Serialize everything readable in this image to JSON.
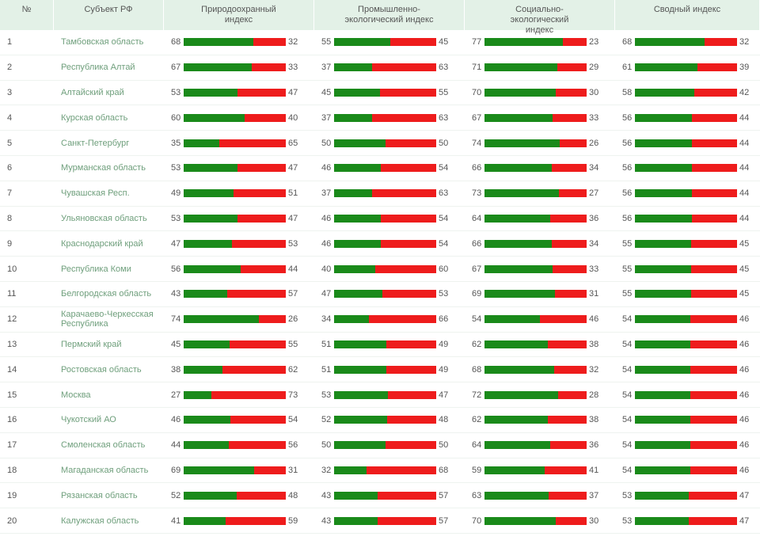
{
  "table": {
    "header": [
      "№",
      "Субъект РФ",
      "Природоохранный индекс",
      "Промышленно-экологический индекс",
      "Социально-экологический индекс",
      "Сводный индекс"
    ],
    "rows": [
      [
        1,
        "Тамбовская область",
        [
          68,
          32
        ],
        [
          55,
          45
        ],
        [
          77,
          23
        ],
        [
          68,
          32
        ]
      ],
      [
        2,
        "Республика Алтай",
        [
          67,
          33
        ],
        [
          37,
          63
        ],
        [
          71,
          29
        ],
        [
          61,
          39
        ]
      ],
      [
        3,
        "Алтайский край",
        [
          53,
          47
        ],
        [
          45,
          55
        ],
        [
          70,
          30
        ],
        [
          58,
          42
        ]
      ],
      [
        4,
        "Курская область",
        [
          60,
          40
        ],
        [
          37,
          63
        ],
        [
          67,
          33
        ],
        [
          56,
          44
        ]
      ],
      [
        5,
        "Санкт-Петербург",
        [
          35,
          65
        ],
        [
          50,
          50
        ],
        [
          74,
          26
        ],
        [
          56,
          44
        ]
      ],
      [
        6,
        "Мурманская область",
        [
          53,
          47
        ],
        [
          46,
          54
        ],
        [
          66,
          34
        ],
        [
          56,
          44
        ]
      ],
      [
        7,
        "Чувашская Респ.",
        [
          49,
          51
        ],
        [
          37,
          63
        ],
        [
          73,
          27
        ],
        [
          56,
          44
        ]
      ],
      [
        8,
        "Ульяновская область",
        [
          53,
          47
        ],
        [
          46,
          54
        ],
        [
          64,
          36
        ],
        [
          56,
          44
        ]
      ],
      [
        9,
        "Краснодарский край",
        [
          47,
          53
        ],
        [
          46,
          54
        ],
        [
          66,
          34
        ],
        [
          55,
          45
        ]
      ],
      [
        10,
        "Республика Коми",
        [
          56,
          44
        ],
        [
          40,
          60
        ],
        [
          67,
          33
        ],
        [
          55,
          45
        ]
      ],
      [
        11,
        "Белгородская область",
        [
          43,
          57
        ],
        [
          47,
          53
        ],
        [
          69,
          31
        ],
        [
          55,
          45
        ]
      ],
      [
        12,
        "Карачаево-Черкесская Республика",
        [
          74,
          26
        ],
        [
          34,
          66
        ],
        [
          54,
          46
        ],
        [
          54,
          46
        ]
      ],
      [
        13,
        "Пермский край",
        [
          45,
          55
        ],
        [
          51,
          49
        ],
        [
          62,
          38
        ],
        [
          54,
          46
        ]
      ],
      [
        14,
        "Ростовская область",
        [
          38,
          62
        ],
        [
          51,
          49
        ],
        [
          68,
          32
        ],
        [
          54,
          46
        ]
      ],
      [
        15,
        "Москва",
        [
          27,
          73
        ],
        [
          53,
          47
        ],
        [
          72,
          28
        ],
        [
          54,
          46
        ]
      ],
      [
        16,
        "Чукотский АО",
        [
          46,
          54
        ],
        [
          52,
          48
        ],
        [
          62,
          38
        ],
        [
          54,
          46
        ]
      ],
      [
        17,
        "Смоленская область",
        [
          44,
          56
        ],
        [
          50,
          50
        ],
        [
          64,
          36
        ],
        [
          54,
          46
        ]
      ],
      [
        18,
        "Магаданская область",
        [
          69,
          31
        ],
        [
          32,
          68
        ],
        [
          59,
          41
        ],
        [
          54,
          46
        ]
      ],
      [
        19,
        "Рязанская область",
        [
          52,
          48
        ],
        [
          43,
          57
        ],
        [
          63,
          37
        ],
        [
          53,
          47
        ]
      ],
      [
        20,
        "Калужская область",
        [
          41,
          59
        ],
        [
          43,
          57
        ],
        [
          70,
          30
        ],
        [
          53,
          47
        ]
      ]
    ]
  }
}
